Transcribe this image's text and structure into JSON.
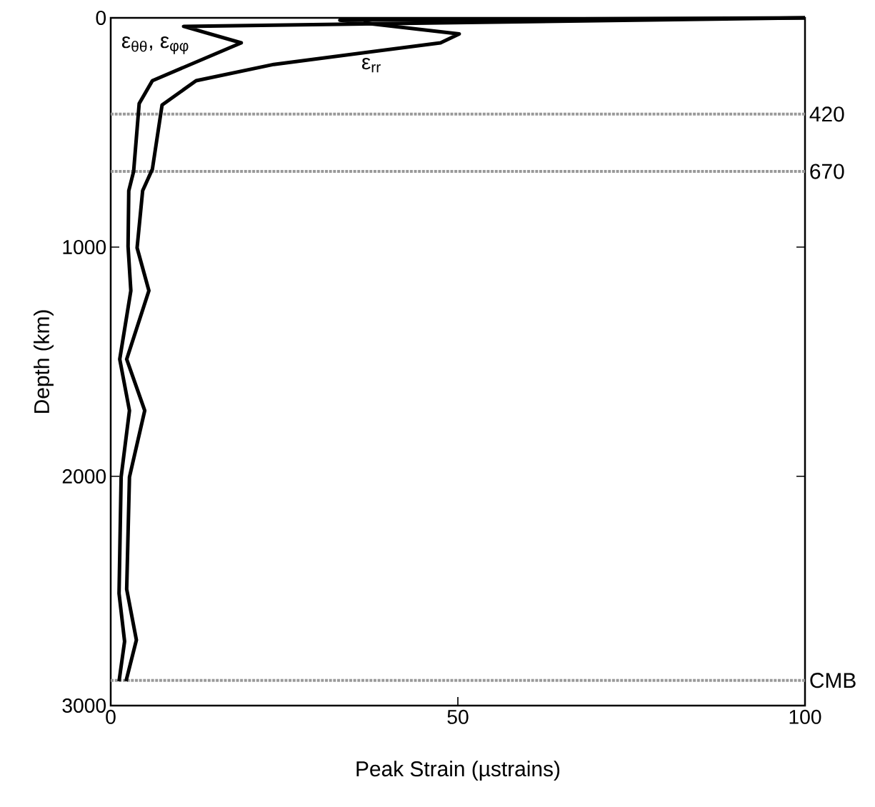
{
  "chart_data": {
    "type": "line",
    "xlabel": "Peak Strain (µstrains)",
    "ylabel": "Depth (km)",
    "xlim": [
      0,
      100
    ],
    "ylim": [
      3000,
      0
    ],
    "xticks": [
      0,
      50,
      100
    ],
    "yticks": [
      0,
      1000,
      2000,
      3000
    ],
    "grid": false,
    "legend": "top left",
    "marker": "none",
    "line_style": "solid",
    "series": [
      {
        "name": "ε$_{θθ}$, ε$_{φφ}$",
        "color": "#000000",
        "x": [
          100,
          10.5,
          18.8,
          6.0,
          4.1,
          3.3,
          2.6,
          2.5,
          2.9,
          1.3,
          2.7,
          1.5,
          1.2,
          2.0,
          1.2
        ],
        "values": [
          0,
          37,
          109,
          274,
          374,
          670,
          754,
          997,
          1190,
          1489,
          1713,
          2003,
          2511,
          2720,
          2894
        ]
      },
      {
        "name": "ε$_{rr}$",
        "color": "#000000",
        "x": [
          100,
          33,
          50.2,
          47.5,
          23.5,
          12.3,
          7.4,
          6.0,
          4.6,
          3.8,
          5.5,
          2.3,
          4.9,
          2.7,
          2.3,
          3.7,
          2.2
        ],
        "values": [
          0,
          10,
          70,
          109,
          203,
          274,
          380,
          660,
          754,
          1003,
          1190,
          1489,
          1713,
          2003,
          2492,
          2714,
          2894
        ]
      }
    ],
    "ref_lines": [
      {
        "axis": "y",
        "value": 420,
        "label": "420",
        "color": "#9a9a9a",
        "line_style": "dotted"
      },
      {
        "axis": "y",
        "value": 670,
        "label": "670",
        "color": "#9a9a9a",
        "line_style": "dotted"
      },
      {
        "axis": "y",
        "value": 2890,
        "label": "CMB",
        "color": "#9a9a9a",
        "line_style": "dotted"
      }
    ]
  }
}
